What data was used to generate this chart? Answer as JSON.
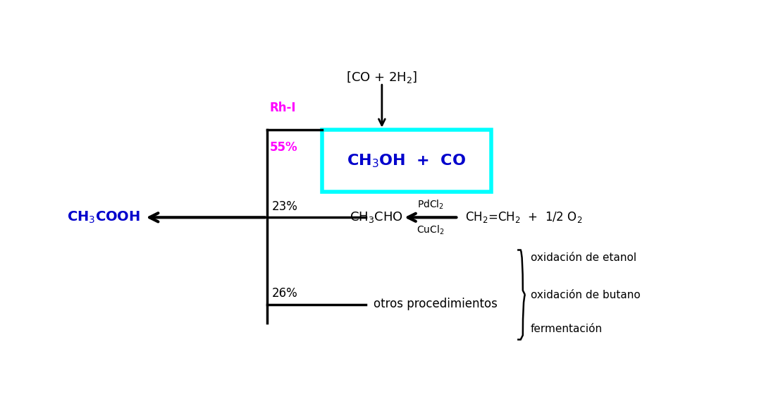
{
  "bg_color": "#ffffff",
  "co_h2_text": "[CO + 2H$_2$]",
  "ch3oh_co_text": "CH$_3$OH  +  CO",
  "box_cyan_color": "#00ffff",
  "box_blue_color": "#0000cc",
  "rh_i_text": "Rh-I",
  "rh_i_color": "#ff00ff",
  "percent_55_text": "55%",
  "percent_55_color": "#ff00ff",
  "percent_23_text": "23%",
  "percent_26_text": "26%",
  "ch3cooh_text": "CH$_3$COOH",
  "ch3cooh_color": "#0000cc",
  "ch3cho_text": "CH$_3$CHO",
  "pdcl2_text": "PdCl$_2$",
  "cucl2_text": "CuCl$_2$",
  "ethylene_text": "CH$_2$=CH$_2$  +  1/2 O$_2$",
  "otros_text": "otros procedimientos",
  "oxidacion_etanol": "oxidación de etanol",
  "oxidacion_butano": "oxidación de butano",
  "fermentacion": "fermentación"
}
